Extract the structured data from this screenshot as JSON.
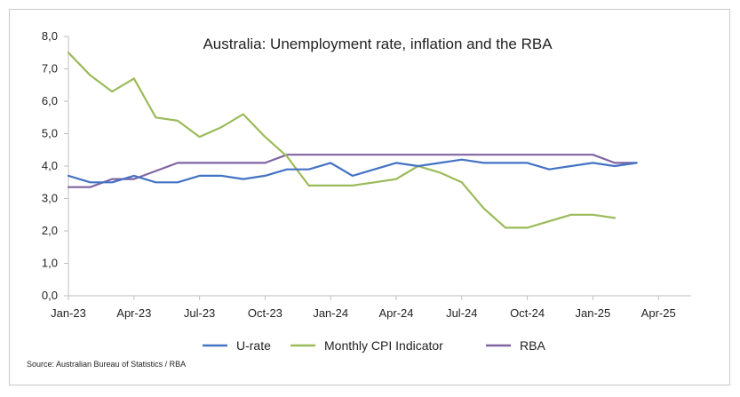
{
  "chart_data": {
    "type": "line",
    "title": "Australia: Unemployment rate, inflation and the RBA",
    "source": "Source: Australian Bureau of Statistics / RBA",
    "xlabel": "",
    "ylabel": "",
    "ylim": [
      0,
      8
    ],
    "yticks": [
      "0,0",
      "1,0",
      "2,0",
      "3,0",
      "4,0",
      "5,0",
      "6,0",
      "7,0",
      "8,0"
    ],
    "xticks": [
      {
        "label": "Jan-23",
        "x": "2023-01"
      },
      {
        "label": "Apr-23",
        "x": "2023-04"
      },
      {
        "label": "Jul-23",
        "x": "2023-07"
      },
      {
        "label": "Oct-23",
        "x": "2023-10"
      },
      {
        "label": "Jan-24",
        "x": "2024-01"
      },
      {
        "label": "Apr-24",
        "x": "2024-04"
      },
      {
        "label": "Jul-24",
        "x": "2024-07"
      },
      {
        "label": "Oct-24",
        "x": "2024-10"
      },
      {
        "label": "Jan-25",
        "x": "2025-01"
      },
      {
        "label": "Apr-25",
        "x": "2025-04"
      }
    ],
    "grid": false,
    "legend_position": "bottom",
    "series": [
      {
        "name": "U-rate",
        "color": "#4472c4",
        "x": [
          "2023-01",
          "2023-02",
          "2023-03",
          "2023-04",
          "2023-05",
          "2023-06",
          "2023-07",
          "2023-08",
          "2023-09",
          "2023-10",
          "2023-11",
          "2023-12",
          "2024-01",
          "2024-02",
          "2024-03",
          "2024-04",
          "2024-05",
          "2024-06",
          "2024-07",
          "2024-08",
          "2024-09",
          "2024-10",
          "2024-11",
          "2024-12",
          "2025-01",
          "2025-02",
          "2025-03"
        ],
        "values": [
          3.7,
          3.5,
          3.5,
          3.7,
          3.5,
          3.5,
          3.7,
          3.7,
          3.6,
          3.7,
          3.9,
          3.9,
          4.1,
          3.7,
          3.9,
          4.1,
          4.0,
          4.1,
          4.2,
          4.1,
          4.1,
          4.1,
          3.9,
          4.0,
          4.1,
          4.0,
          4.1
        ]
      },
      {
        "name": "Monthly CPI Indicator",
        "color": "#9bbb59",
        "x": [
          "2023-01",
          "2023-02",
          "2023-03",
          "2023-04",
          "2023-05",
          "2023-06",
          "2023-07",
          "2023-08",
          "2023-09",
          "2023-10",
          "2023-11",
          "2023-12",
          "2024-01",
          "2024-02",
          "2024-03",
          "2024-04",
          "2024-05",
          "2024-06",
          "2024-07",
          "2024-08",
          "2024-09",
          "2024-10",
          "2024-11",
          "2024-12",
          "2025-01",
          "2025-02"
        ],
        "values": [
          7.5,
          6.8,
          6.3,
          6.7,
          5.5,
          5.4,
          4.9,
          5.2,
          5.6,
          4.9,
          4.3,
          3.4,
          3.4,
          3.4,
          3.5,
          3.6,
          4.0,
          3.8,
          3.5,
          2.7,
          2.1,
          2.1,
          2.3,
          2.5,
          2.5,
          2.4
        ]
      },
      {
        "name": "RBA",
        "color": "#8064a2",
        "x": [
          "2023-01",
          "2023-02",
          "2023-03",
          "2023-04",
          "2023-05",
          "2023-06",
          "2023-07",
          "2023-08",
          "2023-09",
          "2023-10",
          "2023-11",
          "2023-12",
          "2024-01",
          "2024-02",
          "2024-03",
          "2024-04",
          "2024-05",
          "2024-06",
          "2024-07",
          "2024-08",
          "2024-09",
          "2024-10",
          "2024-11",
          "2024-12",
          "2025-01",
          "2025-02",
          "2025-03"
        ],
        "values": [
          3.35,
          3.35,
          3.6,
          3.6,
          3.85,
          4.1,
          4.1,
          4.1,
          4.1,
          4.1,
          4.35,
          4.35,
          4.35,
          4.35,
          4.35,
          4.35,
          4.35,
          4.35,
          4.35,
          4.35,
          4.35,
          4.35,
          4.35,
          4.35,
          4.35,
          4.1,
          4.1
        ]
      }
    ]
  }
}
